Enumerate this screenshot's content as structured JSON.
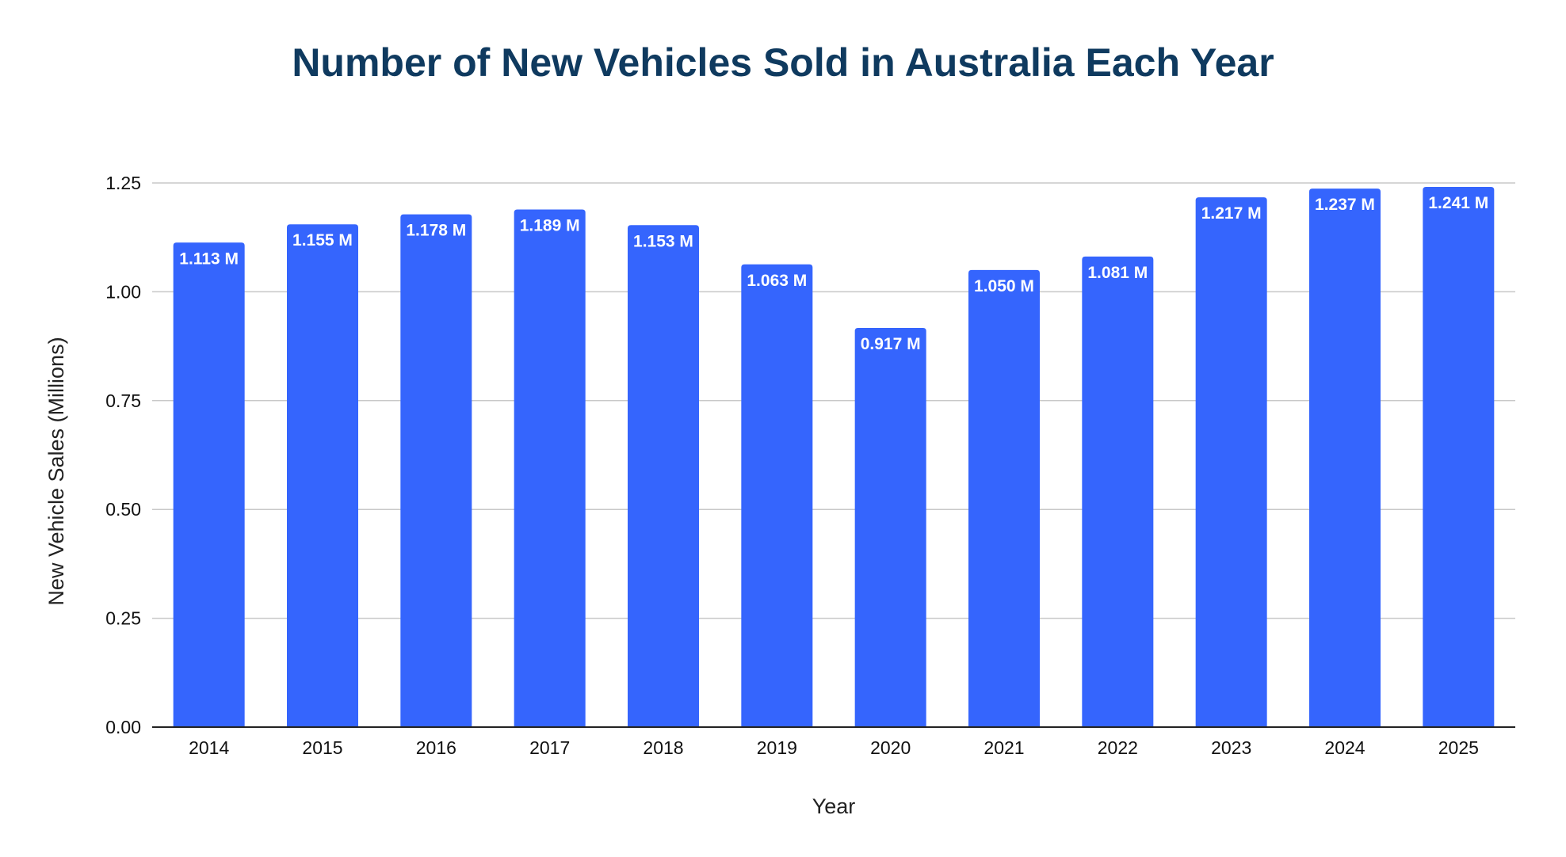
{
  "chart_data": {
    "type": "bar",
    "title": "Number of New Vehicles Sold in Australia Each Year",
    "xlabel": "Year",
    "ylabel": "New Vehicle Sales (Millions)",
    "categories": [
      "2014",
      "2015",
      "2016",
      "2017",
      "2018",
      "2019",
      "2020",
      "2021",
      "2022",
      "2023",
      "2024",
      "2025"
    ],
    "values": [
      1.113,
      1.155,
      1.178,
      1.189,
      1.153,
      1.063,
      0.917,
      1.05,
      1.081,
      1.217,
      1.237,
      1.241
    ],
    "data_labels": [
      "1.113 M",
      "1.155 M",
      "1.178 M",
      "1.189 M",
      "1.153 M",
      "1.063 M",
      "0.917 M",
      "1.050 M",
      "1.081 M",
      "1.217 M",
      "1.237 M",
      "1.241 M"
    ],
    "ylim": [
      0,
      1.25
    ],
    "yticks": [
      "0.00",
      "0.25",
      "0.50",
      "0.75",
      "1.00",
      "1.25"
    ],
    "grid": true,
    "legend": "none",
    "colors": {
      "bar": "#3565fd",
      "title": "#0f3a5f",
      "grid": "#c8c8c8"
    }
  }
}
